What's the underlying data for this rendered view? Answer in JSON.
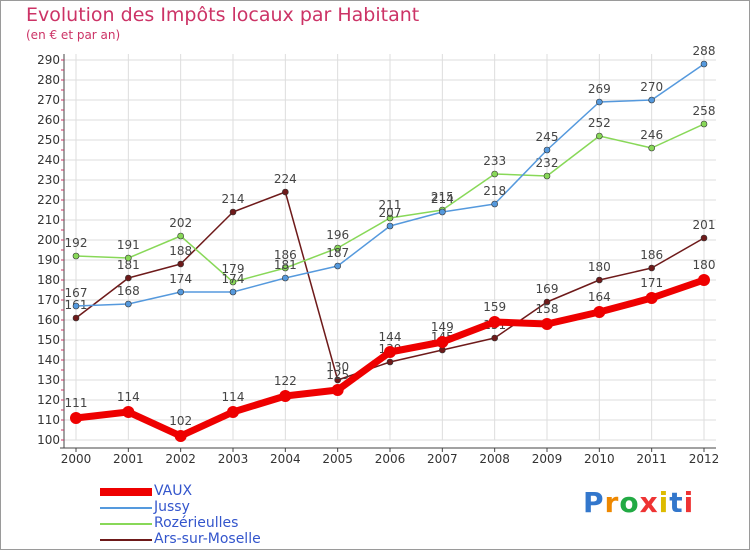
{
  "title": "Evolution des Impôts locaux par Habitant",
  "subtitle": "(en € et par an)",
  "brand": "Proxiti",
  "chart_data": {
    "type": "line",
    "title": "Evolution des Impôts locaux par Habitant",
    "subtitle": "(en € et par an)",
    "xlabel": "",
    "ylabel": "",
    "x": [
      "2000",
      "2001",
      "2002",
      "2003",
      "2004",
      "2005",
      "2006",
      "2007",
      "2008",
      "2009",
      "2010",
      "2011",
      "2012"
    ],
    "ylim": [
      100,
      290
    ],
    "yticks": [
      100,
      110,
      120,
      130,
      140,
      150,
      160,
      170,
      180,
      190,
      200,
      210,
      220,
      230,
      240,
      250,
      260,
      270,
      280,
      290
    ],
    "grid": true,
    "legend_position": "bottom-left",
    "series": [
      {
        "name": "Ars-sur-Moselle",
        "color": "#6e1a1a",
        "values": [
          161,
          181,
          188,
          214,
          224,
          130,
          139,
          145,
          151,
          169,
          180,
          186,
          201
        ]
      },
      {
        "name": "Rozérieulles",
        "color": "#88d858",
        "values": [
          192,
          191,
          202,
          179,
          186,
          196,
          211,
          215,
          233,
          232,
          252,
          246,
          258
        ]
      },
      {
        "name": "Jussy",
        "color": "#5599dd",
        "values": [
          167,
          168,
          174,
          174,
          181,
          187,
          207,
          214,
          218,
          245,
          269,
          270,
          288
        ]
      },
      {
        "name": "VAUX",
        "color": "#ee0000",
        "values": [
          111,
          114,
          102,
          114,
          122,
          125,
          144,
          149,
          159,
          158,
          164,
          171,
          180
        ]
      }
    ],
    "legend": [
      "VAUX",
      "Jussy",
      "Rozérieulles",
      "Ars-sur-Moselle"
    ]
  }
}
